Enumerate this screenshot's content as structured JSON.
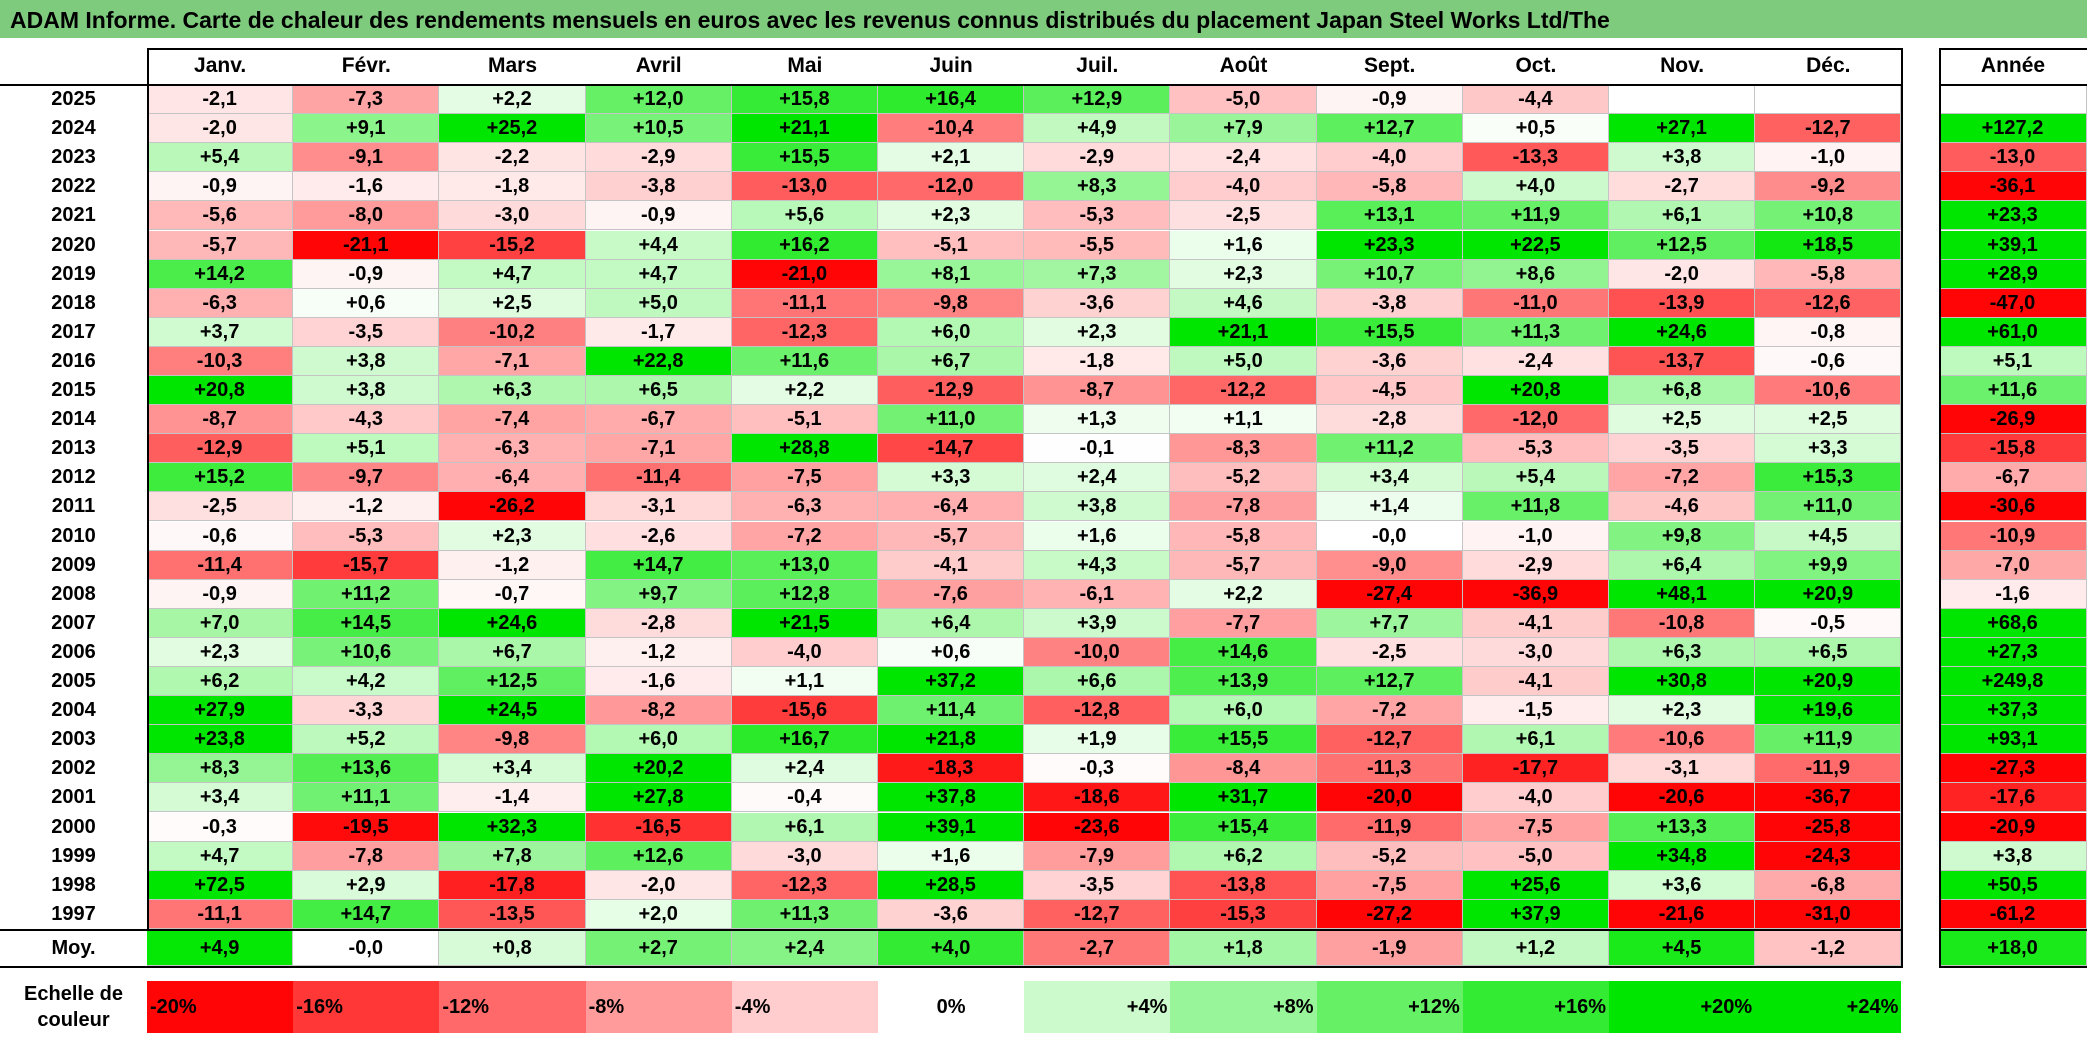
{
  "title": "ADAM Informe. Carte de chaleur des rendements mensuels en euros avec les revenus connus distribués du placement Japan Steel Works Ltd/The",
  "chart_data": {
    "type": "heatmap",
    "title": "ADAM Informe. Carte de chaleur des rendements mensuels en euros avec les revenus connus distribués du placement Japan Steel Works Ltd/The",
    "columns": [
      "Janv.",
      "Févr.",
      "Mars",
      "Avril",
      "Mai",
      "Juin",
      "Juil.",
      "Août",
      "Sept.",
      "Oct.",
      "Nov.",
      "Déc."
    ],
    "year_column_label": "Année",
    "avg_row_label": "Moy.",
    "rows": [
      {
        "year": "2025",
        "values": [
          "-2,1",
          "-7,3",
          "+2,2",
          "+12,0",
          "+15,8",
          "+16,4",
          "+12,9",
          "-5,0",
          "-0,9",
          "-4,4",
          "",
          ""
        ],
        "annual": ""
      },
      {
        "year": "2024",
        "values": [
          "-2,0",
          "+9,1",
          "+25,2",
          "+10,5",
          "+21,1",
          "-10,4",
          "+4,9",
          "+7,9",
          "+12,7",
          "+0,5",
          "+27,1",
          "-12,7"
        ],
        "annual": "+127,2"
      },
      {
        "year": "2023",
        "values": [
          "+5,4",
          "-9,1",
          "-2,2",
          "-2,9",
          "+15,5",
          "+2,1",
          "-2,9",
          "-2,4",
          "-4,0",
          "-13,3",
          "+3,8",
          "-1,0"
        ],
        "annual": "-13,0"
      },
      {
        "year": "2022",
        "values": [
          "-0,9",
          "-1,6",
          "-1,8",
          "-3,8",
          "-13,0",
          "-12,0",
          "+8,3",
          "-4,0",
          "-5,8",
          "+4,0",
          "-2,7",
          "-9,2"
        ],
        "annual": "-36,1"
      },
      {
        "year": "2021",
        "values": [
          "-5,6",
          "-8,0",
          "-3,0",
          "-0,9",
          "+5,6",
          "+2,3",
          "-5,3",
          "-2,5",
          "+13,1",
          "+11,9",
          "+6,1",
          "+10,8"
        ],
        "annual": "+23,3"
      },
      {
        "year": "2020",
        "values": [
          "-5,7",
          "-21,1",
          "-15,2",
          "+4,4",
          "+16,2",
          "-5,1",
          "-5,5",
          "+1,6",
          "+23,3",
          "+22,5",
          "+12,5",
          "+18,5"
        ],
        "annual": "+39,1"
      },
      {
        "year": "2019",
        "values": [
          "+14,2",
          "-0,9",
          "+4,7",
          "+4,7",
          "-21,0",
          "+8,1",
          "+7,3",
          "+2,3",
          "+10,7",
          "+8,6",
          "-2,0",
          "-5,8"
        ],
        "annual": "+28,9"
      },
      {
        "year": "2018",
        "values": [
          "-6,3",
          "+0,6",
          "+2,5",
          "+5,0",
          "-11,1",
          "-9,8",
          "-3,6",
          "+4,6",
          "-3,8",
          "-11,0",
          "-13,9",
          "-12,6"
        ],
        "annual": "-47,0"
      },
      {
        "year": "2017",
        "values": [
          "+3,7",
          "-3,5",
          "-10,2",
          "-1,7",
          "-12,3",
          "+6,0",
          "+2,3",
          "+21,1",
          "+15,5",
          "+11,3",
          "+24,6",
          "-0,8"
        ],
        "annual": "+61,0"
      },
      {
        "year": "2016",
        "values": [
          "-10,3",
          "+3,8",
          "-7,1",
          "+22,8",
          "+11,6",
          "+6,7",
          "-1,8",
          "+5,0",
          "-3,6",
          "-2,4",
          "-13,7",
          "-0,6"
        ],
        "annual": "+5,1"
      },
      {
        "year": "2015",
        "values": [
          "+20,8",
          "+3,8",
          "+6,3",
          "+6,5",
          "+2,2",
          "-12,9",
          "-8,7",
          "-12,2",
          "-4,5",
          "+20,8",
          "+6,8",
          "-10,6"
        ],
        "annual": "+11,6"
      },
      {
        "year": "2014",
        "values": [
          "-8,7",
          "-4,3",
          "-7,4",
          "-6,7",
          "-5,1",
          "+11,0",
          "+1,3",
          "+1,1",
          "-2,8",
          "-12,0",
          "+2,5",
          "+2,5"
        ],
        "annual": "-26,9"
      },
      {
        "year": "2013",
        "values": [
          "-12,9",
          "+5,1",
          "-6,3",
          "-7,1",
          "+28,8",
          "-14,7",
          "-0,1",
          "-8,3",
          "+11,2",
          "-5,3",
          "-3,5",
          "+3,3"
        ],
        "annual": "-15,8"
      },
      {
        "year": "2012",
        "values": [
          "+15,2",
          "-9,7",
          "-6,4",
          "-11,4",
          "-7,5",
          "+3,3",
          "+2,4",
          "-5,2",
          "+3,4",
          "+5,4",
          "-7,2",
          "+15,3"
        ],
        "annual": "-6,7"
      },
      {
        "year": "2011",
        "values": [
          "-2,5",
          "-1,2",
          "-26,2",
          "-3,1",
          "-6,3",
          "-6,4",
          "+3,8",
          "-7,8",
          "+1,4",
          "+11,8",
          "-4,6",
          "+11,0"
        ],
        "annual": "-30,6"
      },
      {
        "year": "2010",
        "values": [
          "-0,6",
          "-5,3",
          "+2,3",
          "-2,6",
          "-7,2",
          "-5,7",
          "+1,6",
          "-5,8",
          "-0,0",
          "-1,0",
          "+9,8",
          "+4,5"
        ],
        "annual": "-10,9"
      },
      {
        "year": "2009",
        "values": [
          "-11,4",
          "-15,7",
          "-1,2",
          "+14,7",
          "+13,0",
          "-4,1",
          "+4,3",
          "-5,7",
          "-9,0",
          "-2,9",
          "+6,4",
          "+9,9"
        ],
        "annual": "-7,0"
      },
      {
        "year": "2008",
        "values": [
          "-0,9",
          "+11,2",
          "-0,7",
          "+9,7",
          "+12,8",
          "-7,6",
          "-6,1",
          "+2,2",
          "-27,4",
          "-36,9",
          "+48,1",
          "+20,9"
        ],
        "annual": "-1,6"
      },
      {
        "year": "2007",
        "values": [
          "+7,0",
          "+14,5",
          "+24,6",
          "-2,8",
          "+21,5",
          "+6,4",
          "+3,9",
          "-7,7",
          "+7,7",
          "-4,1",
          "-10,8",
          "-0,5"
        ],
        "annual": "+68,6"
      },
      {
        "year": "2006",
        "values": [
          "+2,3",
          "+10,6",
          "+6,7",
          "-1,2",
          "-4,0",
          "+0,6",
          "-10,0",
          "+14,6",
          "-2,5",
          "-3,0",
          "+6,3",
          "+6,5"
        ],
        "annual": "+27,3"
      },
      {
        "year": "2005",
        "values": [
          "+6,2",
          "+4,2",
          "+12,5",
          "-1,6",
          "+1,1",
          "+37,2",
          "+6,6",
          "+13,9",
          "+12,7",
          "-4,1",
          "+30,8",
          "+20,9"
        ],
        "annual": "+249,8"
      },
      {
        "year": "2004",
        "values": [
          "+27,9",
          "-3,3",
          "+24,5",
          "-8,2",
          "-15,6",
          "+11,4",
          "-12,8",
          "+6,0",
          "-7,2",
          "-1,5",
          "+2,3",
          "+19,6"
        ],
        "annual": "+37,3"
      },
      {
        "year": "2003",
        "values": [
          "+23,8",
          "+5,2",
          "-9,8",
          "+6,0",
          "+16,7",
          "+21,8",
          "+1,9",
          "+15,5",
          "-12,7",
          "+6,1",
          "-10,6",
          "+11,9"
        ],
        "annual": "+93,1"
      },
      {
        "year": "2002",
        "values": [
          "+8,3",
          "+13,6",
          "+3,4",
          "+20,2",
          "+2,4",
          "-18,3",
          "-0,3",
          "-8,4",
          "-11,3",
          "-17,7",
          "-3,1",
          "-11,9"
        ],
        "annual": "-27,3"
      },
      {
        "year": "2001",
        "values": [
          "+3,4",
          "+11,1",
          "-1,4",
          "+27,8",
          "-0,4",
          "+37,8",
          "-18,6",
          "+31,7",
          "-20,0",
          "-4,0",
          "-20,6",
          "-36,7"
        ],
        "annual": "-17,6"
      },
      {
        "year": "2000",
        "values": [
          "-0,3",
          "-19,5",
          "+32,3",
          "-16,5",
          "+6,1",
          "+39,1",
          "-23,6",
          "+15,4",
          "-11,9",
          "-7,5",
          "+13,3",
          "-25,8"
        ],
        "annual": "-20,9"
      },
      {
        "year": "1999",
        "values": [
          "+4,7",
          "-7,8",
          "+7,8",
          "+12,6",
          "-3,0",
          "+1,6",
          "-7,9",
          "+6,2",
          "-5,2",
          "-5,0",
          "+34,8",
          "-24,3"
        ],
        "annual": "+3,8"
      },
      {
        "year": "1998",
        "values": [
          "+72,5",
          "+2,9",
          "-17,8",
          "-2,0",
          "-12,3",
          "+28,5",
          "-3,5",
          "-13,8",
          "-7,5",
          "+25,6",
          "+3,6",
          "-6,8"
        ],
        "annual": "+50,5"
      },
      {
        "year": "1997",
        "values": [
          "-11,1",
          "+14,7",
          "-13,5",
          "+2,0",
          "+11,3",
          "-3,6",
          "-12,7",
          "-15,3",
          "-27,2",
          "+37,9",
          "-21,6",
          "-31,0"
        ],
        "annual": "-61,2"
      }
    ],
    "averages": {
      "values": [
        "+4,9",
        "-0,0",
        "+0,8",
        "+2,7",
        "+2,4",
        "+4,0",
        "-2,7",
        "+1,8",
        "-1,9",
        "+1,2",
        "+4,5",
        "-1,2"
      ],
      "annual": "+18,0"
    },
    "color_scale": {
      "label_line1": "Echelle de",
      "label_line2": "couleur",
      "steps": [
        "-20%",
        "-16%",
        "-12%",
        "-8%",
        "-4%",
        "0%",
        "+4%",
        "+8%",
        "+12%",
        "+16%",
        "+20%",
        "+24%"
      ],
      "step_values": [
        -20,
        -16,
        -12,
        -8,
        -4,
        0,
        4,
        8,
        12,
        16,
        20,
        24
      ],
      "colors": {
        "negative": "#ff0000",
        "neutral": "#ffffff",
        "positive": "#00e600"
      }
    },
    "row_label_header": ""
  }
}
